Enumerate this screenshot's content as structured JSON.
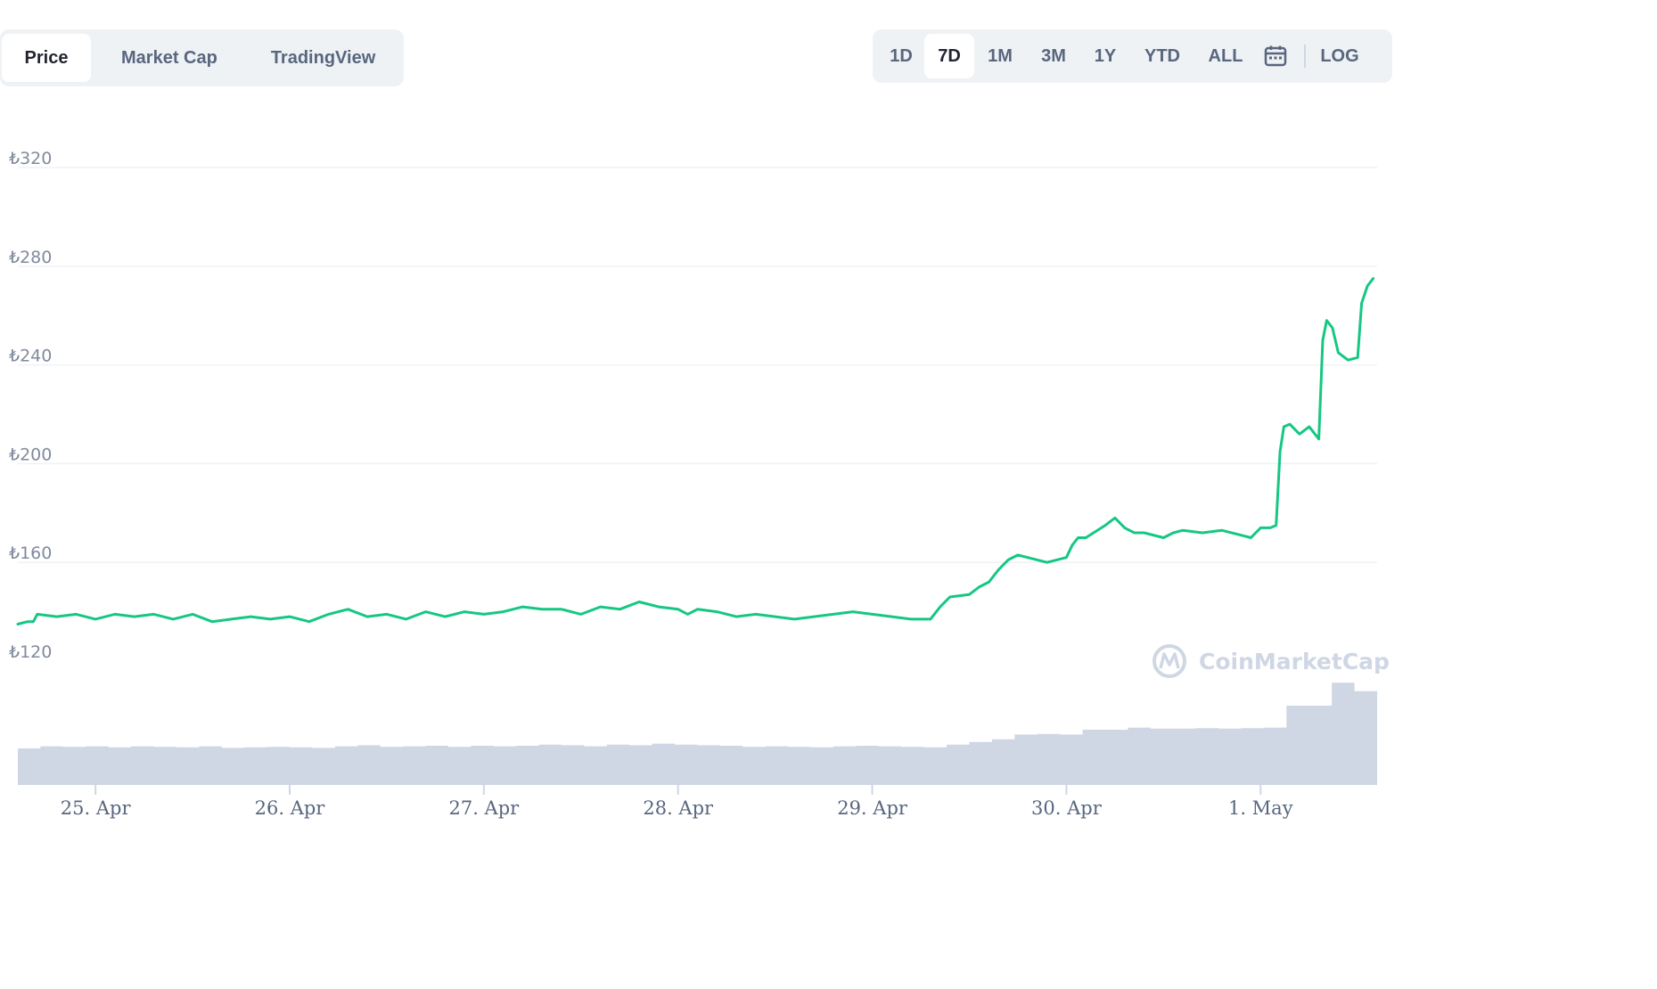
{
  "tabs": {
    "price": "Price",
    "market_cap": "Market Cap",
    "tradingview": "TradingView"
  },
  "ranges": {
    "d1": "1D",
    "d7": "7D",
    "m1": "1M",
    "m3": "3M",
    "y1": "1Y",
    "ytd": "YTD",
    "all": "ALL",
    "log": "LOG"
  },
  "icons": {
    "calendar": "calendar-icon",
    "logo": "coinmarketcap-logo-icon"
  },
  "watermark": "CoinMarketCap",
  "chart_data": {
    "type": "line",
    "currency_symbol": "₺",
    "y_ticks": [
      "₺120",
      "₺160",
      "₺200",
      "₺240",
      "₺280",
      "₺320"
    ],
    "y_tick_values": [
      120,
      160,
      200,
      240,
      280,
      320
    ],
    "ylim": [
      120,
      320
    ],
    "x_ticks": [
      "25. Apr",
      "26. Apr",
      "27. Apr",
      "28. Apr",
      "29. Apr",
      "30. Apr",
      "1. May"
    ],
    "x_tick_days": [
      0,
      1,
      2,
      3,
      4,
      5,
      6
    ],
    "xlim": [
      -0.4,
      6.6
    ],
    "grid": true,
    "line_color": "#16c784",
    "volume_color": "#cfd6e4",
    "series": [
      {
        "x": [
          -0.4,
          -0.35,
          -0.32,
          -0.3,
          -0.2,
          -0.1,
          0.0,
          0.1,
          0.2,
          0.3,
          0.4,
          0.5,
          0.6,
          0.7,
          0.8,
          0.9,
          1.0,
          1.1,
          1.2,
          1.3,
          1.4,
          1.5,
          1.6,
          1.7,
          1.8,
          1.9,
          2.0,
          2.1,
          2.2,
          2.3,
          2.4,
          2.5,
          2.6,
          2.7,
          2.8,
          2.9,
          3.0,
          3.05,
          3.1,
          3.2,
          3.3,
          3.4,
          3.5,
          3.6,
          3.7,
          3.8,
          3.9,
          4.0,
          4.1,
          4.2,
          4.3,
          4.35,
          4.4,
          4.5,
          4.55,
          4.6,
          4.65,
          4.7,
          4.75,
          4.8,
          4.9,
          4.95,
          5.0,
          5.03,
          5.06,
          5.1,
          5.2,
          5.25,
          5.3,
          5.35,
          5.4,
          5.5,
          5.55,
          5.6,
          5.7,
          5.8,
          5.9,
          5.95,
          6.0,
          6.05,
          6.08,
          6.1,
          6.12,
          6.15,
          6.2,
          6.25,
          6.3,
          6.32,
          6.34,
          6.37,
          6.4,
          6.45,
          6.5,
          6.52,
          6.55,
          6.58
        ],
        "y": [
          135,
          136,
          136,
          139,
          138,
          139,
          137,
          139,
          138,
          139,
          137,
          139,
          136,
          137,
          138,
          137,
          138,
          136,
          139,
          141,
          138,
          139,
          137,
          140,
          138,
          140,
          139,
          140,
          142,
          141,
          141,
          139,
          142,
          141,
          144,
          142,
          141,
          139,
          141,
          140,
          138,
          139,
          138,
          137,
          138,
          139,
          140,
          139,
          138,
          137,
          137,
          142,
          146,
          147,
          150,
          152,
          157,
          161,
          163,
          162,
          160,
          161,
          162,
          167,
          170,
          170,
          175,
          178,
          174,
          172,
          172,
          170,
          172,
          173,
          172,
          173,
          171,
          170,
          174,
          174,
          175,
          205,
          215,
          216,
          212,
          215,
          210,
          250,
          258,
          255,
          245,
          242,
          243,
          265,
          272,
          275
        ]
      }
    ]
  }
}
